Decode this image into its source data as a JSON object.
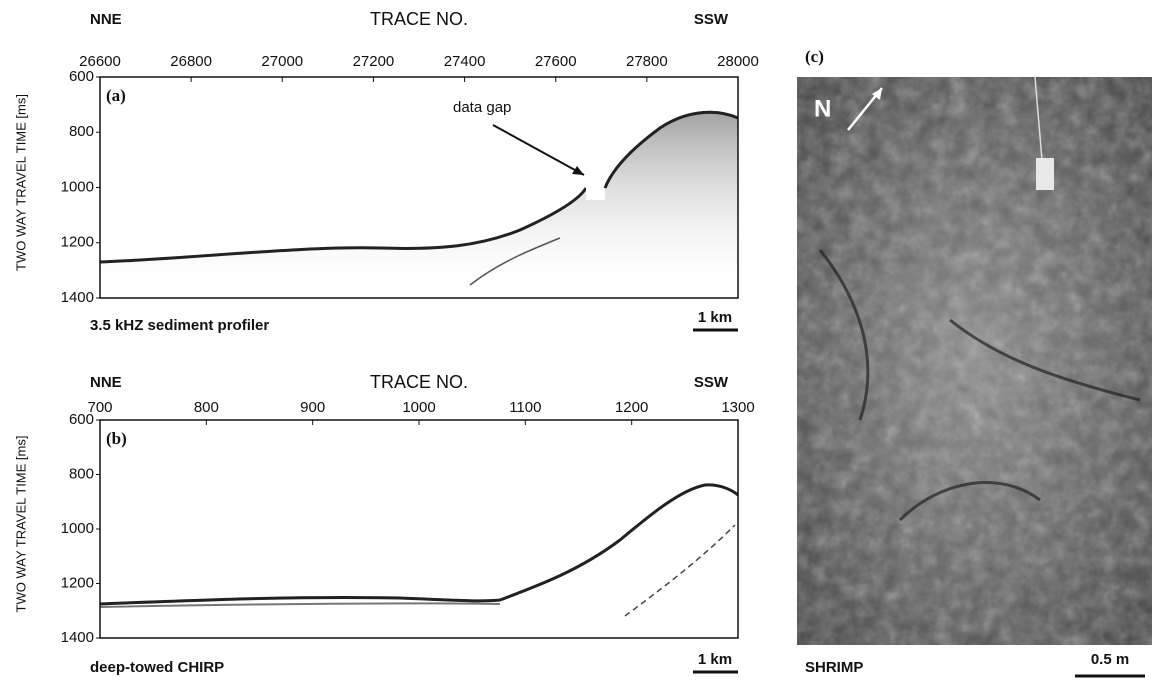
{
  "panels": [
    {
      "label": "(a)",
      "left_label": "NNE",
      "right_label": "SSW",
      "x_title": "TRACE NO.",
      "y_title": "TWO WAY TRAVEL TIME [ms]",
      "xlim": [
        26600,
        28000
      ],
      "xticks": [
        26600,
        26800,
        27000,
        27200,
        27400,
        27600,
        27800,
        28000
      ],
      "ylim": [
        600,
        1400
      ],
      "yticks": [
        600,
        800,
        1000,
        1200,
        1400
      ],
      "annotation": "data gap",
      "caption": "3.5 kHZ sediment profiler",
      "scale": "1 km"
    },
    {
      "label": "(b)",
      "left_label": "NNE",
      "right_label": "SSW",
      "x_title": "TRACE NO.",
      "y_title": "TWO WAY TRAVEL TIME [ms]",
      "xlim": [
        700,
        1300
      ],
      "xticks": [
        700,
        800,
        900,
        1000,
        1100,
        1200,
        1300
      ],
      "ylim": [
        600,
        1400
      ],
      "yticks": [
        600,
        800,
        1000,
        1200,
        1400
      ],
      "caption": "deep-towed CHIRP",
      "scale": "1 km"
    }
  ],
  "photo": {
    "label": "(c)",
    "north": "N",
    "caption": "SHRIMP",
    "scale": "0.5 m"
  }
}
